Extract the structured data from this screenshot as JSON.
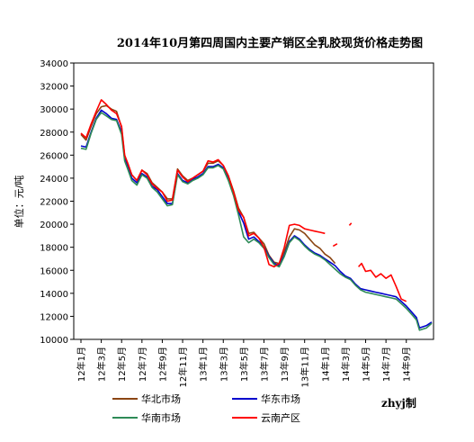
{
  "chart_data": {
    "type": "line",
    "title": "2014年10月第四周国内主要产销区全乳胶现货价格走势图",
    "ylabel": "单位：元/吨",
    "xlabel": "",
    "ylim": [
      10000,
      34000
    ],
    "y_ticks": [
      10000,
      12000,
      14000,
      16000,
      18000,
      20000,
      22000,
      24000,
      26000,
      28000,
      30000,
      32000,
      34000
    ],
    "x_tick_labels": [
      "12年1月",
      "12年3月",
      "12年5月",
      "12年7月",
      "12年9月",
      "12年11月",
      "13年1月",
      "13年3月",
      "13年5月",
      "13年7月",
      "13年9月",
      "13年11月",
      "14年1月",
      "14年3月",
      "14年5月",
      "14年7月",
      "14年9月"
    ],
    "x_unit": "month index (0 = 12年1月)",
    "xlim": [
      0,
      34.5
    ],
    "grid": false,
    "legend": "bottom",
    "annotation": "zhyj制",
    "series": [
      {
        "name": "华北市场",
        "color": "#8B4513",
        "segments": [
          [
            [
              0,
              27800
            ],
            [
              0.5,
              27300
            ],
            [
              1,
              28500
            ],
            [
              1.5,
              29600
            ],
            [
              2,
              30200
            ],
            [
              2.5,
              30300
            ],
            [
              3,
              30000
            ],
            [
              3.5,
              29800
            ],
            [
              4,
              28400
            ],
            [
              4.3,
              25900
            ],
            [
              4.6,
              25300
            ],
            [
              5,
              24300
            ],
            [
              5.5,
              23800
            ],
            [
              6,
              24700
            ],
            [
              6.5,
              24400
            ],
            [
              7,
              23600
            ],
            [
              7.5,
              23200
            ],
            [
              8,
              22800
            ],
            [
              8.5,
              22200
            ],
            [
              9,
              22200
            ],
            [
              9.5,
              24800
            ],
            [
              10,
              24200
            ],
            [
              10.5,
              23800
            ],
            [
              11,
              24000
            ],
            [
              11.5,
              24300
            ],
            [
              12,
              24600
            ],
            [
              12.5,
              25300
            ],
            [
              13,
              25300
            ],
            [
              13.5,
              25500
            ],
            [
              14,
              25100
            ],
            [
              14.5,
              24200
            ],
            [
              15,
              22900
            ],
            [
              15.5,
              21400
            ],
            [
              16,
              20600
            ],
            [
              16.5,
              19200
            ],
            [
              17,
              19300
            ],
            [
              17.5,
              18800
            ],
            [
              18,
              18300
            ],
            [
              18.5,
              17300
            ],
            [
              19,
              16700
            ],
            [
              19.5,
              16600
            ],
            [
              20,
              17600
            ],
            [
              20.5,
              18900
            ],
            [
              21,
              19600
            ],
            [
              21.5,
              19500
            ],
            [
              22,
              19200
            ],
            [
              22.5,
              18700
            ],
            [
              23,
              18200
            ],
            [
              23.5,
              17900
            ],
            [
              24,
              17400
            ],
            [
              24.5,
              17100
            ],
            [
              25,
              16600
            ]
          ]
        ]
      },
      {
        "name": "华东市场",
        "color": "#0000CD",
        "segments": [
          [
            [
              0,
              26800
            ],
            [
              0.5,
              26700
            ],
            [
              1,
              28000
            ],
            [
              1.5,
              29200
            ],
            [
              2,
              29900
            ],
            [
              2.5,
              29600
            ],
            [
              3,
              29200
            ],
            [
              3.5,
              29100
            ],
            [
              4,
              28000
            ],
            [
              4.3,
              25700
            ],
            [
              4.6,
              25000
            ],
            [
              5,
              24000
            ],
            [
              5.5,
              23600
            ],
            [
              6,
              24400
            ],
            [
              6.5,
              24100
            ],
            [
              7,
              23300
            ],
            [
              7.5,
              23000
            ],
            [
              8,
              22400
            ],
            [
              8.5,
              21800
            ],
            [
              9,
              21800
            ],
            [
              9.5,
              24400
            ],
            [
              10,
              23800
            ],
            [
              10.5,
              23600
            ],
            [
              11,
              23900
            ],
            [
              11.5,
              24100
            ],
            [
              12,
              24400
            ],
            [
              12.5,
              25000
            ],
            [
              13,
              25000
            ],
            [
              13.5,
              25200
            ],
            [
              14,
              24900
            ],
            [
              14.5,
              23900
            ],
            [
              15,
              22700
            ],
            [
              15.5,
              21100
            ],
            [
              16,
              20100
            ],
            [
              16.5,
              18700
            ],
            [
              17,
              18900
            ],
            [
              17.5,
              18500
            ],
            [
              18,
              18000
            ],
            [
              18.5,
              17200
            ],
            [
              19,
              16600
            ],
            [
              19.5,
              16400
            ],
            [
              20,
              17300
            ],
            [
              20.5,
              18500
            ],
            [
              21,
              19000
            ],
            [
              21.5,
              18700
            ],
            [
              22,
              18200
            ],
            [
              22.5,
              17800
            ],
            [
              23,
              17500
            ],
            [
              23.5,
              17300
            ],
            [
              24,
              17000
            ],
            [
              24.5,
              16700
            ],
            [
              25,
              16400
            ],
            [
              25.5,
              15900
            ],
            [
              26,
              15500
            ],
            [
              26.5,
              15300
            ],
            [
              27,
              14800
            ],
            [
              27.5,
              14400
            ],
            [
              28,
              14300
            ],
            [
              28.5,
              14200
            ],
            [
              29,
              14100
            ],
            [
              29.5,
              14000
            ],
            [
              30,
              13900
            ],
            [
              30.5,
              13800
            ],
            [
              31,
              13700
            ],
            [
              31.5,
              13300
            ],
            [
              32,
              12900
            ],
            [
              32.5,
              12400
            ],
            [
              33,
              11900
            ],
            [
              33.3,
              11000
            ],
            [
              34,
              11200
            ],
            [
              34.5,
              11500
            ]
          ]
        ]
      },
      {
        "name": "华南市场",
        "color": "#2E8B57",
        "segments": [
          [
            [
              0,
              26600
            ],
            [
              0.5,
              26500
            ],
            [
              1,
              27900
            ],
            [
              1.5,
              29100
            ],
            [
              2,
              29700
            ],
            [
              2.5,
              29400
            ],
            [
              3,
              29100
            ],
            [
              3.5,
              29000
            ],
            [
              4,
              27800
            ],
            [
              4.3,
              25500
            ],
            [
              4.6,
              24800
            ],
            [
              5,
              23800
            ],
            [
              5.5,
              23400
            ],
            [
              6,
              24300
            ],
            [
              6.5,
              24000
            ],
            [
              7,
              23200
            ],
            [
              7.5,
              22800
            ],
            [
              8,
              22200
            ],
            [
              8.5,
              21600
            ],
            [
              9,
              21700
            ],
            [
              9.5,
              24300
            ],
            [
              10,
              23700
            ],
            [
              10.5,
              23500
            ],
            [
              11,
              23800
            ],
            [
              11.5,
              24000
            ],
            [
              12,
              24300
            ],
            [
              12.5,
              24900
            ],
            [
              13,
              24900
            ],
            [
              13.5,
              25100
            ],
            [
              14,
              24800
            ],
            [
              14.5,
              23800
            ],
            [
              15,
              22500
            ],
            [
              15.5,
              20800
            ],
            [
              16,
              18900
            ],
            [
              16.5,
              18400
            ],
            [
              17,
              18700
            ],
            [
              17.5,
              18400
            ],
            [
              18,
              17900
            ],
            [
              18.5,
              17100
            ],
            [
              19,
              16500
            ],
            [
              19.5,
              16300
            ],
            [
              20,
              17200
            ],
            [
              20.5,
              18400
            ],
            [
              21,
              18900
            ],
            [
              21.5,
              18600
            ],
            [
              22,
              18100
            ],
            [
              22.5,
              17700
            ],
            [
              23,
              17400
            ],
            [
              23.5,
              17200
            ],
            [
              24,
              16900
            ],
            [
              24.5,
              16500
            ],
            [
              25,
              16100
            ],
            [
              25.5,
              15700
            ],
            [
              26,
              15400
            ],
            [
              26.5,
              15200
            ],
            [
              27,
              14700
            ],
            [
              27.5,
              14300
            ],
            [
              28,
              14100
            ],
            [
              28.5,
              14000
            ],
            [
              29,
              13900
            ],
            [
              29.5,
              13800
            ],
            [
              30,
              13700
            ],
            [
              30.5,
              13600
            ],
            [
              31,
              13500
            ],
            [
              31.5,
              13100
            ],
            [
              32,
              12700
            ],
            [
              32.5,
              12200
            ],
            [
              33,
              11700
            ],
            [
              33.3,
              10800
            ],
            [
              34,
              11000
            ],
            [
              34.5,
              11400
            ]
          ]
        ]
      },
      {
        "name": "云南产区",
        "color": "#FF0000",
        "segments": [
          [
            [
              0,
              27900
            ],
            [
              0.5,
              27500
            ],
            [
              1,
              28700
            ],
            [
              1.5,
              29800
            ],
            [
              2,
              30800
            ],
            [
              2.5,
              30400
            ],
            [
              3,
              29900
            ],
            [
              3.5,
              29600
            ],
            [
              4,
              28500
            ],
            [
              4.3,
              26000
            ],
            [
              4.6,
              25300
            ],
            [
              5,
              24300
            ],
            [
              5.5,
              23800
            ],
            [
              6,
              24700
            ],
            [
              6.5,
              24300
            ],
            [
              7,
              23500
            ],
            [
              7.5,
              23100
            ],
            [
              8,
              22800
            ],
            [
              8.5,
              22000
            ],
            [
              9,
              22100
            ],
            [
              9.5,
              24700
            ],
            [
              10,
              24100
            ],
            [
              10.5,
              23700
            ],
            [
              11,
              24000
            ],
            [
              11.5,
              24300
            ],
            [
              12,
              24600
            ],
            [
              12.5,
              25500
            ],
            [
              13,
              25400
            ],
            [
              13.5,
              25600
            ],
            [
              14,
              25100
            ],
            [
              14.5,
              24200
            ],
            [
              15,
              22800
            ],
            [
              15.5,
              21200
            ],
            [
              16,
              20600
            ],
            [
              16.5,
              19000
            ],
            [
              17,
              19200
            ],
            [
              17.5,
              18800
            ],
            [
              18,
              18000
            ],
            [
              18.5,
              16500
            ],
            [
              19,
              16300
            ],
            [
              19.5,
              16600
            ],
            [
              20,
              18000
            ],
            [
              20.5,
              19900
            ],
            [
              21,
              20000
            ],
            [
              21.5,
              19900
            ],
            [
              22,
              19600
            ],
            [
              22.5,
              19500
            ],
            [
              23,
              19400
            ],
            [
              23.5,
              19300
            ],
            [
              24,
              19200
            ]
          ],
          [
            [
              24.8,
              18100
            ],
            [
              25.2,
              18300
            ]
          ],
          [
            [
              26.4,
              19900
            ],
            [
              26.6,
              20100
            ]
          ],
          [
            [
              27.3,
              16300
            ],
            [
              27.6,
              16600
            ],
            [
              28,
              15900
            ],
            [
              28.5,
              16000
            ],
            [
              29,
              15400
            ],
            [
              29.5,
              15700
            ],
            [
              30,
              15300
            ],
            [
              30.5,
              15600
            ],
            [
              31,
              14600
            ],
            [
              31.5,
              13500
            ],
            [
              32,
              13300
            ]
          ]
        ]
      }
    ]
  }
}
